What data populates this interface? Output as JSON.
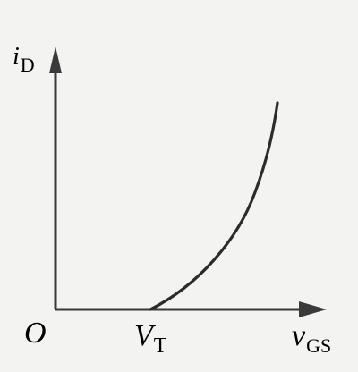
{
  "diagram": {
    "type": "transfer-characteristic",
    "y_axis_label": {
      "main": "i",
      "sub": "D"
    },
    "x_axis_label": {
      "main": "v",
      "sub": "GS"
    },
    "origin_label": "O",
    "threshold_label": {
      "main": "V",
      "sub": "T"
    },
    "curve_color": "#2b2b2b",
    "axis_color": "#3a3a3a",
    "background_color": "#f3f3f1"
  }
}
